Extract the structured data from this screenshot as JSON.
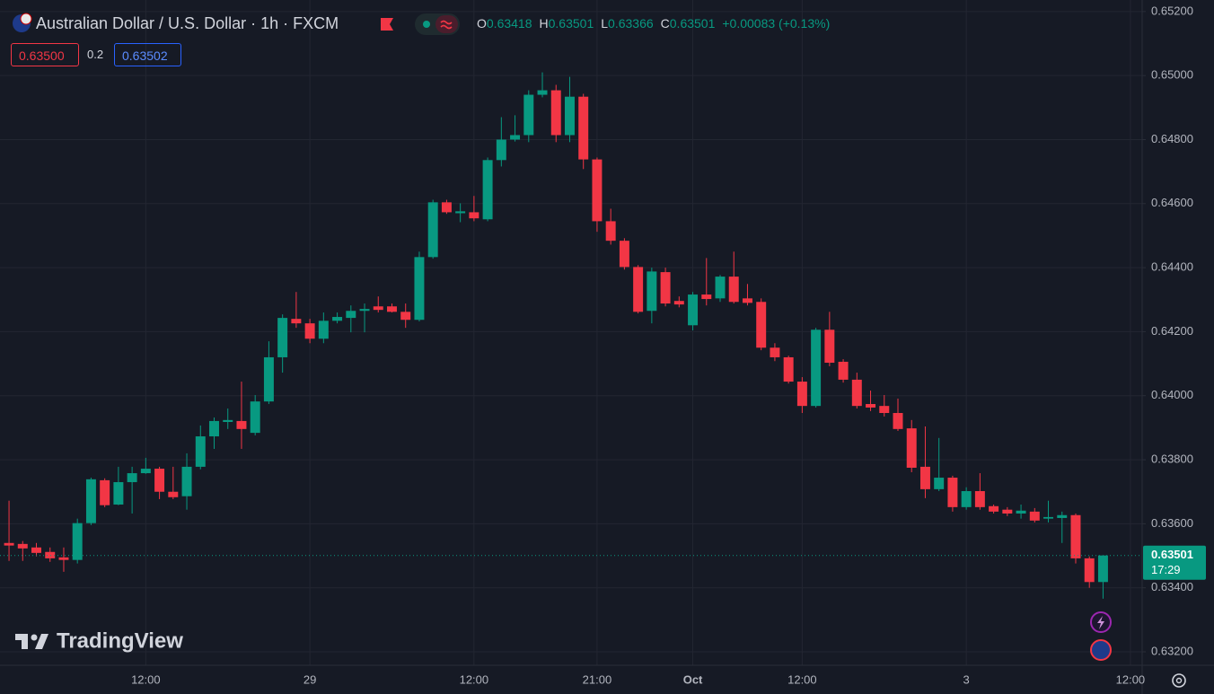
{
  "chart_data": {
    "type": "candlestick",
    "title": "Australian Dollar / U.S. Dollar · 1h · FXCM",
    "ohlc_header": [
      {
        "key": "O",
        "value": "0.63418"
      },
      {
        "key": "H",
        "value": "0.63501"
      },
      {
        "key": "L",
        "value": "0.63366"
      },
      {
        "key": "C",
        "value": "0.63501"
      }
    ],
    "change": "+0.00083 (+0.13%)",
    "sell_price": "0.63500",
    "spread": "0.2",
    "buy_price": "0.63502",
    "last_price": "0.63501",
    "countdown": "17:29",
    "watermark": "TradingView",
    "up_color": "#089981",
    "down_color": "#f23645",
    "open": [
      0.6354,
      0.63537,
      0.63526,
      0.63512,
      0.63495,
      0.63487,
      0.63602,
      0.63736,
      0.6366,
      0.6373,
      0.63758,
      0.63772,
      0.637,
      0.63686,
      0.63778,
      0.63873,
      0.63918,
      0.63921,
      0.63884,
      0.63982,
      0.6412,
      0.6424,
      0.64226,
      0.64178,
      0.64234,
      0.64243,
      0.64265,
      0.64279,
      0.64279,
      0.64262,
      0.64237,
      0.64433,
      0.64604,
      0.6457,
      0.64573,
      0.64551,
      0.64736,
      0.648,
      0.64814,
      0.6494,
      0.64954,
      0.64814,
      0.64934,
      0.64738,
      0.64545,
      0.64484,
      0.64402,
      0.64265,
      0.64386,
      0.64296,
      0.6422,
      0.64316,
      0.64304,
      0.64372,
      0.64304,
      0.64293,
      0.6415,
      0.6412,
      0.64044,
      0.63968,
      0.64206,
      0.64106,
      0.6405,
      0.63974,
      0.63968,
      0.63946,
      0.63898,
      0.63778,
      0.63708,
      0.63744,
      0.63652,
      0.63702,
      0.63655,
      0.63644,
      0.63632,
      0.63638,
      0.63616,
      0.63618,
      0.63627,
      0.63492,
      0.63418
    ],
    "high": [
      0.63672,
      0.63546,
      0.6354,
      0.63526,
      0.63526,
      0.63616,
      0.63744,
      0.63742,
      0.63778,
      0.63778,
      0.63806,
      0.63778,
      0.63778,
      0.6382,
      0.63907,
      0.63932,
      0.6396,
      0.64044,
      0.64002,
      0.6417,
      0.64254,
      0.64324,
      0.6424,
      0.6426,
      0.6426,
      0.64282,
      0.64288,
      0.6431,
      0.64288,
      0.64288,
      0.6445,
      0.64612,
      0.64612,
      0.64601,
      0.64624,
      0.64744,
      0.6487,
      0.64876,
      0.64954,
      0.6501,
      0.64971,
      0.64996,
      0.64943,
      0.64744,
      0.64584,
      0.64492,
      0.64408,
      0.644,
      0.644,
      0.6431,
      0.64324,
      0.6443,
      0.64377,
      0.6445,
      0.64349,
      0.64304,
      0.64164,
      0.64125,
      0.64058,
      0.64212,
      0.64262,
      0.64114,
      0.64072,
      0.64016,
      0.64002,
      0.63991,
      0.63924,
      0.63904,
      0.63868,
      0.6375,
      0.63714,
      0.63758,
      0.6366,
      0.63652,
      0.6366,
      0.63649,
      0.63672,
      0.63638,
      0.63632,
      0.63498,
      0.63501
    ],
    "low": [
      0.63484,
      0.63484,
      0.63498,
      0.63481,
      0.6345,
      0.63476,
      0.63596,
      0.63652,
      0.63658,
      0.63632,
      0.63756,
      0.63677,
      0.63677,
      0.63644,
      0.6377,
      0.63834,
      0.63896,
      0.63834,
      0.63876,
      0.63974,
      0.64072,
      0.64212,
      0.64164,
      0.64164,
      0.64226,
      0.64198,
      0.64198,
      0.6426,
      0.6426,
      0.64212,
      0.64232,
      0.64428,
      0.64568,
      0.64542,
      0.64545,
      0.64545,
      0.64716,
      0.64794,
      0.64792,
      0.64932,
      0.64792,
      0.64792,
      0.64708,
      0.64512,
      0.64472,
      0.64394,
      0.64257,
      0.64226,
      0.64279,
      0.64276,
      0.64204,
      0.64282,
      0.64293,
      0.64288,
      0.64282,
      0.64142,
      0.64108,
      0.64038,
      0.63946,
      0.63963,
      0.64092,
      0.64041,
      0.6396,
      0.63952,
      0.63935,
      0.6389,
      0.63761,
      0.6368,
      0.63702,
      0.63638,
      0.63644,
      0.63644,
      0.63632,
      0.63624,
      0.63616,
      0.63604,
      0.63604,
      0.6354,
      0.63476,
      0.634,
      0.63366
    ],
    "close": [
      0.63532,
      0.63523,
      0.63509,
      0.63492,
      0.63487,
      0.63602,
      0.63739,
      0.63658,
      0.6373,
      0.63758,
      0.63772,
      0.637,
      0.63683,
      0.63778,
      0.63873,
      0.63921,
      0.63924,
      0.63896,
      0.63982,
      0.6412,
      0.64243,
      0.64226,
      0.64178,
      0.64234,
      0.64246,
      0.64265,
      0.64271,
      0.64268,
      0.64262,
      0.64237,
      0.64433,
      0.64604,
      0.64573,
      0.64576,
      0.64554,
      0.64736,
      0.648,
      0.64814,
      0.6494,
      0.64954,
      0.64814,
      0.64934,
      0.64738,
      0.64545,
      0.64484,
      0.64402,
      0.64262,
      0.64388,
      0.64288,
      0.64285,
      0.64316,
      0.64302,
      0.64372,
      0.64293,
      0.6429,
      0.6415,
      0.6412,
      0.64044,
      0.63968,
      0.64206,
      0.64103,
      0.6405,
      0.63968,
      0.63963,
      0.63946,
      0.63896,
      0.63775,
      0.63708,
      0.63744,
      0.63652,
      0.63702,
      0.63652,
      0.63638,
      0.63632,
      0.63641,
      0.6361,
      0.63621,
      0.63627,
      0.63492,
      0.63418,
      0.63501
    ],
    "xlim": [
      -0.66,
      82.86
    ],
    "xticks": [
      {
        "value": 10,
        "label": "12:00"
      },
      {
        "value": 22,
        "label": "29"
      },
      {
        "value": 34,
        "label": "12:00"
      },
      {
        "value": 43,
        "label": "21:00"
      },
      {
        "value": 50,
        "label": "Oct"
      },
      {
        "value": 58,
        "label": "12:00"
      },
      {
        "value": 70,
        "label": "3"
      },
      {
        "value": 82,
        "label": "12:00"
      }
    ],
    "ylim": [
      0.63158,
      0.65236
    ],
    "yticks": [
      {
        "value": 0.652,
        "label": "0.65200"
      },
      {
        "value": 0.65,
        "label": "0.65000"
      },
      {
        "value": 0.648,
        "label": "0.64800"
      },
      {
        "value": 0.646,
        "label": "0.64600"
      },
      {
        "value": 0.644,
        "label": "0.64400"
      },
      {
        "value": 0.642,
        "label": "0.64200"
      },
      {
        "value": 0.64,
        "label": "0.64000"
      },
      {
        "value": 0.638,
        "label": "0.63800"
      },
      {
        "value": 0.636,
        "label": "0.63600"
      },
      {
        "value": 0.634,
        "label": "0.63400"
      },
      {
        "value": 0.632,
        "label": "0.63200"
      }
    ],
    "grid": true
  }
}
